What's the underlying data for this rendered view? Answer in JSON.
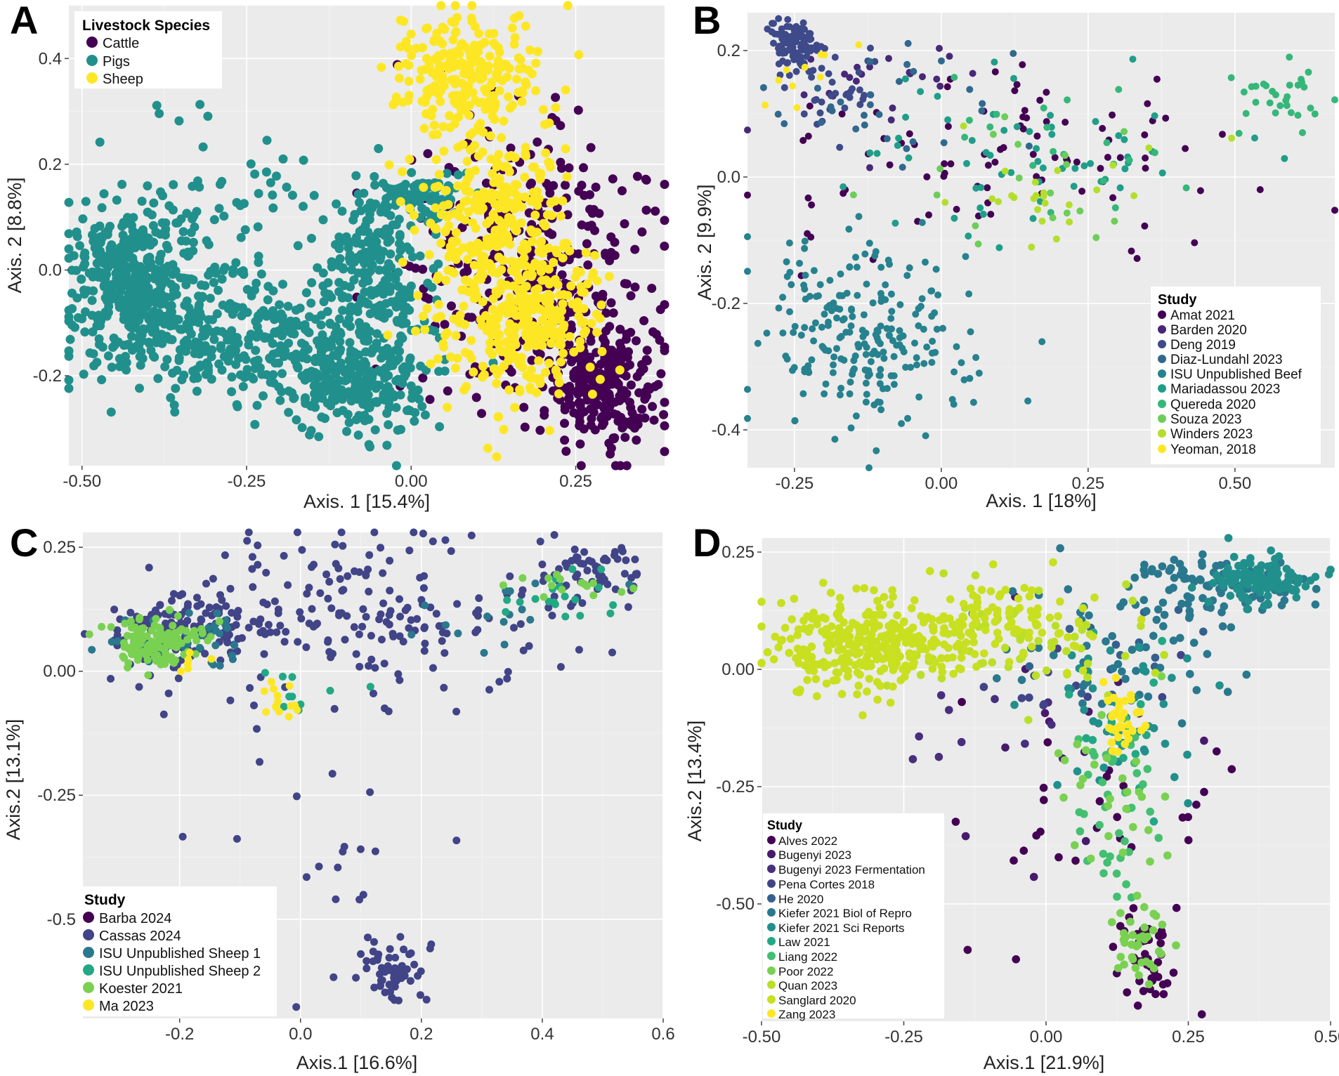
{
  "figure": {
    "panels": [
      "A",
      "B",
      "C",
      "D"
    ]
  },
  "chart_data": [
    {
      "panel": "A",
      "type": "scatter",
      "title": "",
      "xlabel": "Axis. 1 [15.4%]",
      "ylabel": "Axis. 2 [8.8%]",
      "xlim": [
        -0.52,
        0.385
      ],
      "ylim": [
        -0.37,
        0.5
      ],
      "xticks": [
        -0.5,
        -0.25,
        0.0,
        0.25
      ],
      "xtick_labels": [
        "-0.50",
        "-0.25",
        "0.00",
        "0.25"
      ],
      "yticks": [
        -0.2,
        0.0,
        0.2,
        0.4
      ],
      "ytick_labels": [
        "-0.2",
        "0.0",
        "0.2",
        "0.4"
      ],
      "legend": {
        "title": "Livestock Species",
        "position": "top-left"
      },
      "series": [
        {
          "name": "Cattle",
          "color": "#440154",
          "clusters": [
            {
              "cx": 0.29,
              "cy": -0.22,
              "sx": 0.04,
              "sy": 0.055,
              "n": 260
            },
            {
              "cx": 0.19,
              "cy": 0.0,
              "sx": 0.09,
              "sy": 0.12,
              "n": 330
            }
          ]
        },
        {
          "name": "Pigs",
          "color": "#21908C",
          "clusters": [
            {
              "cx": -0.42,
              "cy": -0.02,
              "sx": 0.05,
              "sy": 0.07,
              "n": 420
            },
            {
              "cx": -0.26,
              "cy": -0.13,
              "sx": 0.1,
              "sy": 0.06,
              "n": 330
            },
            {
              "cx": -0.08,
              "cy": -0.21,
              "sx": 0.06,
              "sy": 0.05,
              "n": 230
            },
            {
              "cx": -0.06,
              "cy": 0.0,
              "sx": 0.04,
              "sy": 0.09,
              "n": 220
            },
            {
              "cx": 0.02,
              "cy": 0.14,
              "sx": 0.04,
              "sy": 0.02,
              "n": 80
            },
            {
              "cx": -0.3,
              "cy": 0.12,
              "sx": 0.1,
              "sy": 0.08,
              "n": 70
            }
          ]
        },
        {
          "name": "Sheep",
          "color": "#FDE725",
          "clusters": [
            {
              "cx": 0.08,
              "cy": 0.38,
              "sx": 0.05,
              "sy": 0.06,
              "n": 220
            },
            {
              "cx": 0.13,
              "cy": 0.05,
              "sx": 0.06,
              "sy": 0.14,
              "n": 420
            },
            {
              "cx": 0.2,
              "cy": -0.1,
              "sx": 0.05,
              "sy": 0.07,
              "n": 150
            }
          ]
        }
      ]
    },
    {
      "panel": "B",
      "type": "scatter",
      "title": "",
      "xlabel": "Axis. 1 [18%]",
      "ylabel": "Axis. 2 [9.9%]",
      "xlim": [
        -0.33,
        0.67
      ],
      "ylim": [
        -0.46,
        0.26
      ],
      "xticks": [
        -0.25,
        0.0,
        0.25,
        0.5
      ],
      "xtick_labels": [
        "-0.25",
        "0.00",
        "0.25",
        "0.50"
      ],
      "yticks": [
        -0.4,
        -0.2,
        0.0,
        0.2
      ],
      "ytick_labels": [
        "-0.4",
        "-0.2",
        "0.0",
        "0.2"
      ],
      "legend": {
        "title": "Study",
        "position": "bottom-right"
      },
      "series": [
        {
          "name": "Amat 2021",
          "color": "#440154",
          "clusters": [
            {
              "cx": 0.1,
              "cy": 0.03,
              "sx": 0.2,
              "sy": 0.08,
              "n": 90
            }
          ]
        },
        {
          "name": "Barden 2020",
          "color": "#482878",
          "clusters": [
            {
              "cx": -0.1,
              "cy": 0.15,
              "sx": 0.08,
              "sy": 0.04,
              "n": 25
            }
          ]
        },
        {
          "name": "Deng 2019",
          "color": "#3E4A89",
          "clusters": [
            {
              "cx": -0.25,
              "cy": 0.21,
              "sx": 0.02,
              "sy": 0.02,
              "n": 110
            },
            {
              "cx": -0.18,
              "cy": 0.13,
              "sx": 0.04,
              "sy": 0.04,
              "n": 30
            }
          ]
        },
        {
          "name": "Diaz-Lundahl 2023",
          "color": "#31688E",
          "clusters": [
            {
              "cx": -0.05,
              "cy": 0.12,
              "sx": 0.12,
              "sy": 0.05,
              "n": 30
            }
          ]
        },
        {
          "name": "ISU Unpublished Beef",
          "color": "#26828E",
          "clusters": [
            {
              "cx": -0.13,
              "cy": -0.24,
              "sx": 0.09,
              "sy": 0.08,
              "n": 230
            }
          ]
        },
        {
          "name": "Mariadassou 2023",
          "color": "#1F9E89",
          "clusters": [
            {
              "cx": 0.15,
              "cy": 0.05,
              "sx": 0.16,
              "sy": 0.06,
              "n": 60
            }
          ]
        },
        {
          "name": "Quereda 2020",
          "color": "#35B779",
          "clusters": [
            {
              "cx": 0.58,
              "cy": 0.12,
              "sx": 0.05,
              "sy": 0.03,
              "n": 30
            },
            {
              "cx": 0.2,
              "cy": 0.04,
              "sx": 0.1,
              "sy": 0.05,
              "n": 20
            }
          ]
        },
        {
          "name": "Souza 2023",
          "color": "#6DCD59",
          "clusters": [
            {
              "cx": 0.15,
              "cy": 0.0,
              "sx": 0.12,
              "sy": 0.06,
              "n": 18
            }
          ]
        },
        {
          "name": "Winders 2023",
          "color": "#B4DE2C",
          "clusters": [
            {
              "cx": 0.2,
              "cy": -0.04,
              "sx": 0.1,
              "sy": 0.05,
              "n": 25
            }
          ]
        },
        {
          "name": "Yeoman, 2018",
          "color": "#FDE725",
          "clusters": [
            {
              "cx": -0.22,
              "cy": 0.16,
              "sx": 0.03,
              "sy": 0.03,
              "n": 10
            }
          ]
        }
      ]
    },
    {
      "panel": "C",
      "type": "scatter",
      "title": "",
      "xlabel": "Axis.1 [16.6%]",
      "ylabel": "Axis.2 [13.1%]",
      "xlim": [
        -0.36,
        0.6
      ],
      "ylim": [
        -0.7,
        0.28
      ],
      "xticks": [
        -0.2,
        0.0,
        0.2,
        0.4,
        0.6
      ],
      "xtick_labels": [
        "-0.2",
        "0.0",
        "0.2",
        "0.4",
        "0.6"
      ],
      "yticks": [
        -0.5,
        -0.25,
        0.0,
        0.25
      ],
      "ytick_labels": [
        "-0.5",
        "-0.25",
        "0.00",
        "0.25"
      ],
      "legend": {
        "title": "Study",
        "position": "bottom-left"
      },
      "series": [
        {
          "name": "Barba 2024",
          "color": "#440154",
          "clusters": []
        },
        {
          "name": "Cassas 2024",
          "color": "#414487",
          "clusters": [
            {
              "cx": -0.2,
              "cy": 0.08,
              "sx": 0.06,
              "sy": 0.04,
              "n": 130
            },
            {
              "cx": 0.1,
              "cy": 0.12,
              "sx": 0.15,
              "sy": 0.08,
              "n": 180
            },
            {
              "cx": 0.48,
              "cy": 0.2,
              "sx": 0.05,
              "sy": 0.03,
              "n": 60
            },
            {
              "cx": 0.15,
              "cy": -0.6,
              "sx": 0.03,
              "sy": 0.03,
              "n": 60
            },
            {
              "cx": 0.05,
              "cy": -0.3,
              "sx": 0.1,
              "sy": 0.15,
              "n": 25
            }
          ]
        },
        {
          "name": "ISU Unpublished Sheep 1",
          "color": "#2A788E",
          "clusters": [
            {
              "cx": -0.2,
              "cy": 0.06,
              "sx": 0.05,
              "sy": 0.03,
              "n": 40
            },
            {
              "cx": 0.35,
              "cy": 0.12,
              "sx": 0.1,
              "sy": 0.04,
              "n": 15
            }
          ]
        },
        {
          "name": "ISU Unpublished Sheep 2",
          "color": "#22A884",
          "clusters": [
            {
              "cx": 0.45,
              "cy": 0.16,
              "sx": 0.05,
              "sy": 0.03,
              "n": 20
            },
            {
              "cx": 0.0,
              "cy": -0.05,
              "sx": 0.05,
              "sy": 0.03,
              "n": 10
            }
          ]
        },
        {
          "name": "Koester 2021",
          "color": "#7AD151",
          "clusters": [
            {
              "cx": -0.24,
              "cy": 0.06,
              "sx": 0.04,
              "sy": 0.025,
              "n": 130
            },
            {
              "cx": 0.45,
              "cy": 0.17,
              "sx": 0.05,
              "sy": 0.02,
              "n": 15
            }
          ]
        },
        {
          "name": "Ma 2023",
          "color": "#FDE725",
          "clusters": [
            {
              "cx": -0.05,
              "cy": -0.06,
              "sx": 0.03,
              "sy": 0.02,
              "n": 14
            },
            {
              "cx": -0.2,
              "cy": 0.02,
              "sx": 0.03,
              "sy": 0.02,
              "n": 6
            }
          ]
        }
      ]
    },
    {
      "panel": "D",
      "type": "scatter",
      "title": "",
      "xlabel": "Axis.1 [21.9%]",
      "ylabel": "Axis.2 [13.4%]",
      "xlim": [
        -0.5,
        0.5
      ],
      "ylim": [
        -0.75,
        0.28
      ],
      "xticks": [
        -0.5,
        -0.25,
        0.0,
        0.25,
        0.5
      ],
      "xtick_labels": [
        "-0.50",
        "-0.25",
        "0.00",
        "0.25",
        "0.50"
      ],
      "yticks": [
        -0.5,
        -0.25,
        0.0,
        0.25
      ],
      "ytick_labels": [
        "-0.50",
        "-0.25",
        "0.00",
        "0.25"
      ],
      "legend": {
        "title": "Study",
        "position": "bottom-left"
      },
      "series": [
        {
          "name": "Alves 2022",
          "color": "#440154",
          "clusters": [
            {
              "cx": 0.18,
              "cy": -0.62,
              "sx": 0.03,
              "sy": 0.05,
              "n": 45
            },
            {
              "cx": 0.1,
              "cy": -0.35,
              "sx": 0.12,
              "sy": 0.15,
              "n": 30
            }
          ]
        },
        {
          "name": "Bugenyi 2023",
          "color": "#481A6C",
          "clusters": [
            {
              "cx": 0.05,
              "cy": -0.15,
              "sx": 0.1,
              "sy": 0.1,
              "n": 15
            }
          ]
        },
        {
          "name": "Bugenyi 2023 Fermentation",
          "color": "#472F7D",
          "clusters": [
            {
              "cx": -0.1,
              "cy": -0.1,
              "sx": 0.1,
              "sy": 0.06,
              "n": 10
            }
          ]
        },
        {
          "name": "Pena Cortes 2018",
          "color": "#414487",
          "clusters": [
            {
              "cx": 0.0,
              "cy": -0.05,
              "sx": 0.1,
              "sy": 0.06,
              "n": 12
            }
          ]
        },
        {
          "name": "He 2020",
          "color": "#35608D",
          "clusters": [
            {
              "cx": 0.1,
              "cy": 0.05,
              "sx": 0.1,
              "sy": 0.06,
              "n": 15
            }
          ]
        },
        {
          "name": "Kiefer 2021 Biol of Repro",
          "color": "#2A788E",
          "clusters": [
            {
              "cx": 0.3,
              "cy": 0.18,
              "sx": 0.08,
              "sy": 0.03,
              "n": 90
            },
            {
              "cx": 0.15,
              "cy": 0.05,
              "sx": 0.12,
              "sy": 0.07,
              "n": 60
            }
          ]
        },
        {
          "name": "Kiefer 2021 Sci Reports",
          "color": "#21908C",
          "clusters": [
            {
              "cx": 0.38,
              "cy": 0.19,
              "sx": 0.05,
              "sy": 0.025,
              "n": 110
            },
            {
              "cx": 0.12,
              "cy": -0.1,
              "sx": 0.06,
              "sy": 0.1,
              "n": 50
            }
          ]
        },
        {
          "name": "Law 2021",
          "color": "#22A884",
          "clusters": [
            {
              "cx": 0.1,
              "cy": -0.15,
              "sx": 0.06,
              "sy": 0.1,
              "n": 15
            }
          ]
        },
        {
          "name": "Liang 2022",
          "color": "#43BF71",
          "clusters": [
            {
              "cx": 0.12,
              "cy": -0.3,
              "sx": 0.04,
              "sy": 0.12,
              "n": 40
            }
          ]
        },
        {
          "name": "Poor 2022",
          "color": "#7AD151",
          "clusters": [
            {
              "cx": 0.17,
              "cy": -0.58,
              "sx": 0.025,
              "sy": 0.04,
              "n": 35
            },
            {
              "cx": 0.12,
              "cy": -0.3,
              "sx": 0.05,
              "sy": 0.12,
              "n": 30
            }
          ]
        },
        {
          "name": "Quan 2023",
          "color": "#BBDF27",
          "clusters": [
            {
              "cx": -0.05,
              "cy": 0.05,
              "sx": 0.12,
              "sy": 0.06,
              "n": 60
            }
          ]
        },
        {
          "name": "Sanglard 2020",
          "color": "#C8E020",
          "clusters": [
            {
              "cx": -0.32,
              "cy": 0.05,
              "sx": 0.08,
              "sy": 0.05,
              "n": 280
            },
            {
              "cx": -0.1,
              "cy": 0.1,
              "sx": 0.1,
              "sy": 0.05,
              "n": 120
            }
          ]
        },
        {
          "name": "Zang 2023",
          "color": "#FDE725",
          "clusters": [
            {
              "cx": 0.13,
              "cy": -0.11,
              "sx": 0.015,
              "sy": 0.03,
              "n": 35
            }
          ]
        }
      ]
    }
  ]
}
